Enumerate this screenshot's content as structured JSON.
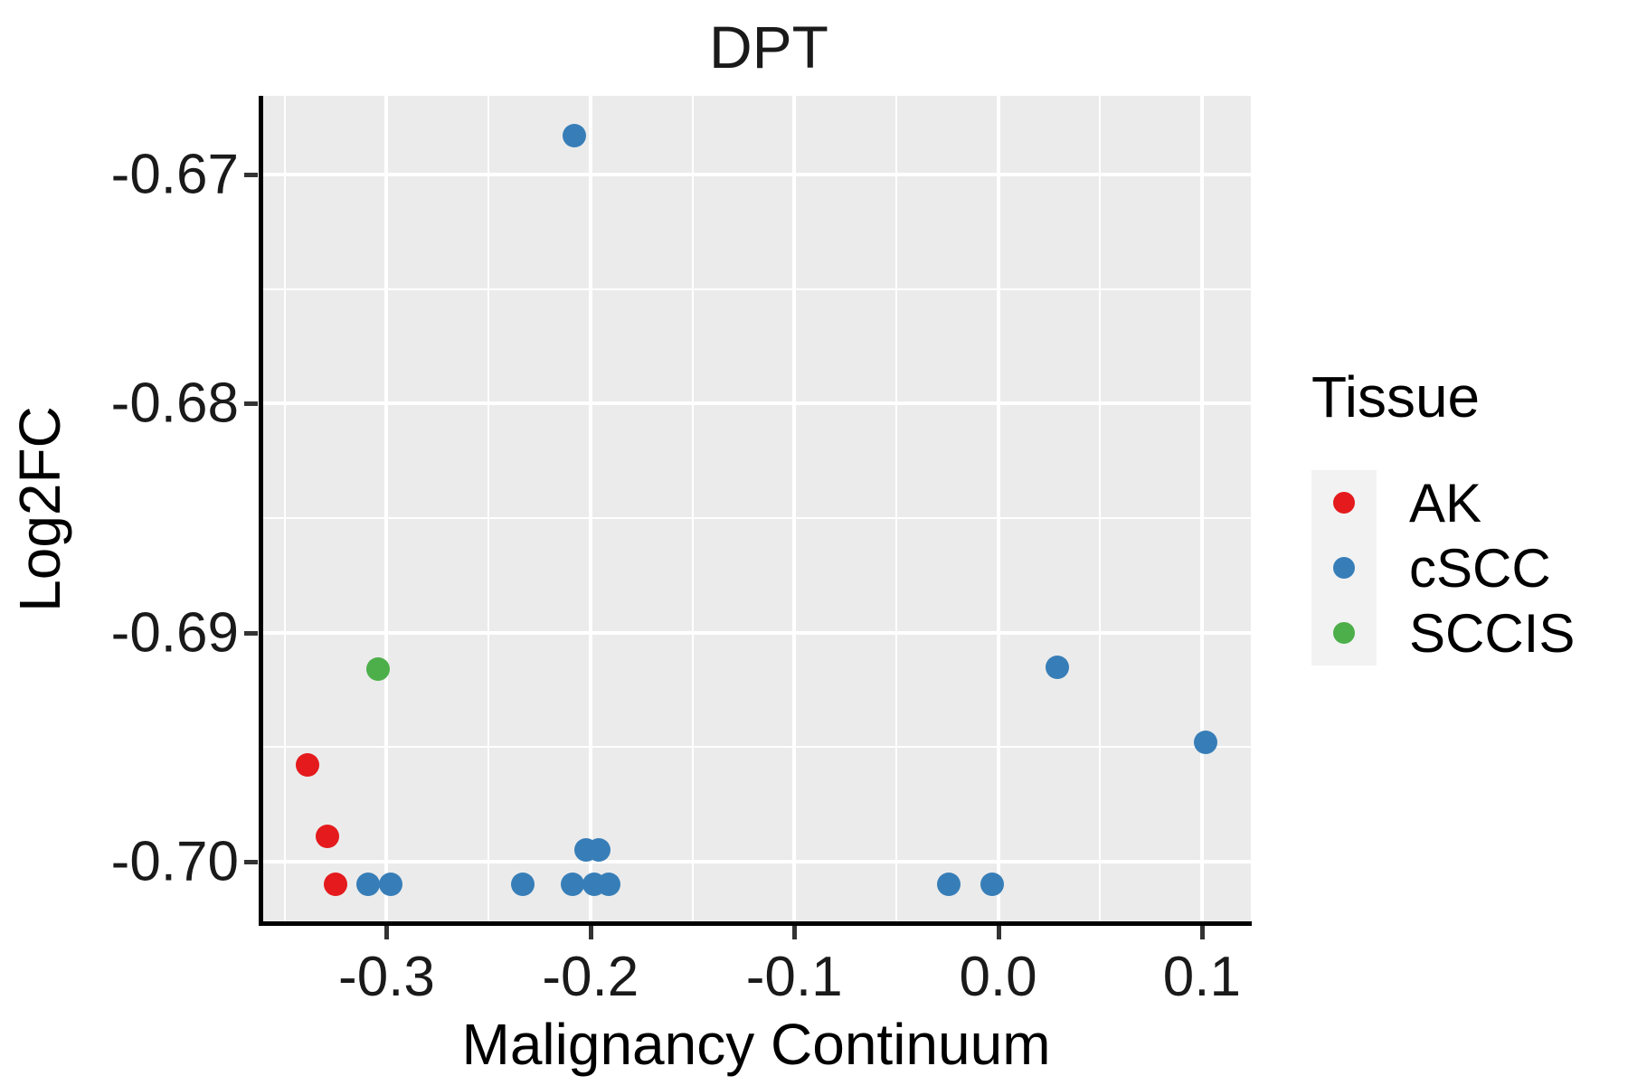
{
  "title": "DPT",
  "x_axis_label": "Malignancy Continuum",
  "y_axis_label": "Log2FC",
  "legend": {
    "title": "Tissue",
    "position": "right",
    "entries": [
      {
        "label": "AK",
        "color": "#E41A1C"
      },
      {
        "label": "cSCC",
        "color": "#377EB8"
      },
      {
        "label": "SCCIS",
        "color": "#4DAF4A"
      }
    ]
  },
  "chart_data": {
    "type": "scatter",
    "title": "DPT",
    "xlabel": "Malignancy Continuum",
    "ylabel": "Log2FC",
    "xlim": [
      -0.361,
      0.124
    ],
    "ylim": [
      -0.70269,
      -0.66657
    ],
    "grid": true,
    "x_ticks": [
      {
        "value": -0.3,
        "label": "-0.3"
      },
      {
        "value": -0.2,
        "label": "-0.2"
      },
      {
        "value": -0.1,
        "label": "-0.1"
      },
      {
        "value": 0.0,
        "label": "0.0"
      },
      {
        "value": 0.1,
        "label": "0.1"
      }
    ],
    "x_minor_ticks": [
      -0.35,
      -0.25,
      -0.15,
      -0.05,
      0.05
    ],
    "y_ticks": [
      {
        "value": -0.67,
        "label": "-0.67"
      },
      {
        "value": -0.68,
        "label": "-0.68"
      },
      {
        "value": -0.69,
        "label": "-0.69"
      },
      {
        "value": -0.7,
        "label": "-0.70"
      }
    ],
    "y_minor_ticks": [
      -0.675,
      -0.685,
      -0.695
    ],
    "series": [
      {
        "name": "AK",
        "color": "#E41A1C",
        "points": [
          [
            -0.339,
            -0.6958
          ],
          [
            -0.329,
            -0.6989
          ],
          [
            -0.325,
            -0.701
          ]
        ]
      },
      {
        "name": "cSCC",
        "color": "#377EB8",
        "points": [
          [
            -0.208,
            -0.6683
          ],
          [
            -0.309,
            -0.701
          ],
          [
            -0.298,
            -0.701
          ],
          [
            -0.233,
            -0.701
          ],
          [
            -0.209,
            -0.701
          ],
          [
            -0.198,
            -0.701
          ],
          [
            -0.191,
            -0.701
          ],
          [
            -0.202,
            -0.6995
          ],
          [
            -0.196,
            -0.6995
          ],
          [
            -0.024,
            -0.701
          ],
          [
            -0.003,
            -0.701
          ],
          [
            0.029,
            -0.6915
          ],
          [
            0.102,
            -0.6948
          ]
        ]
      },
      {
        "name": "SCCIS",
        "color": "#4DAF4A",
        "points": [
          [
            -0.304,
            -0.6916
          ]
        ]
      }
    ],
    "style": {
      "panel_bg": "#EBEBEB",
      "grid_color": "#FFFFFF",
      "axis_color": "#000000",
      "tick_color": "#333333",
      "text_color": "#1a1a1a",
      "legend_key_bg": "#F2F2F2"
    }
  }
}
